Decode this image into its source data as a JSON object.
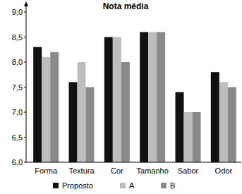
{
  "chart_data": {
    "type": "bar",
    "title": "Nota média",
    "categories": [
      "Forma",
      "Textura",
      "Cor",
      "Tamanho",
      "Sabor",
      "Odor"
    ],
    "series": [
      {
        "name": "Proposto",
        "color": "#111111",
        "values": [
          8.3,
          7.6,
          8.5,
          8.6,
          7.4,
          7.8
        ]
      },
      {
        "name": "A",
        "color": "#bdbdbd",
        "values": [
          8.1,
          8.0,
          8.5,
          8.6,
          7.0,
          7.6
        ]
      },
      {
        "name": "B",
        "color": "#8a8a8a",
        "values": [
          8.2,
          7.5,
          8.0,
          8.6,
          7.0,
          7.5
        ]
      }
    ],
    "ylim": [
      6,
      9
    ],
    "yticks": [
      {
        "value": 6,
        "label": "6,0"
      },
      {
        "value": 6.5,
        "label": "6,5"
      },
      {
        "value": 7,
        "label": "7,0"
      },
      {
        "value": 7.5,
        "label": "7,5"
      },
      {
        "value": 8,
        "label": "8,0"
      },
      {
        "value": 8.5,
        "label": "8,5"
      },
      {
        "value": 9,
        "label": "9,0"
      }
    ],
    "grid": false,
    "legend": "bottom"
  }
}
